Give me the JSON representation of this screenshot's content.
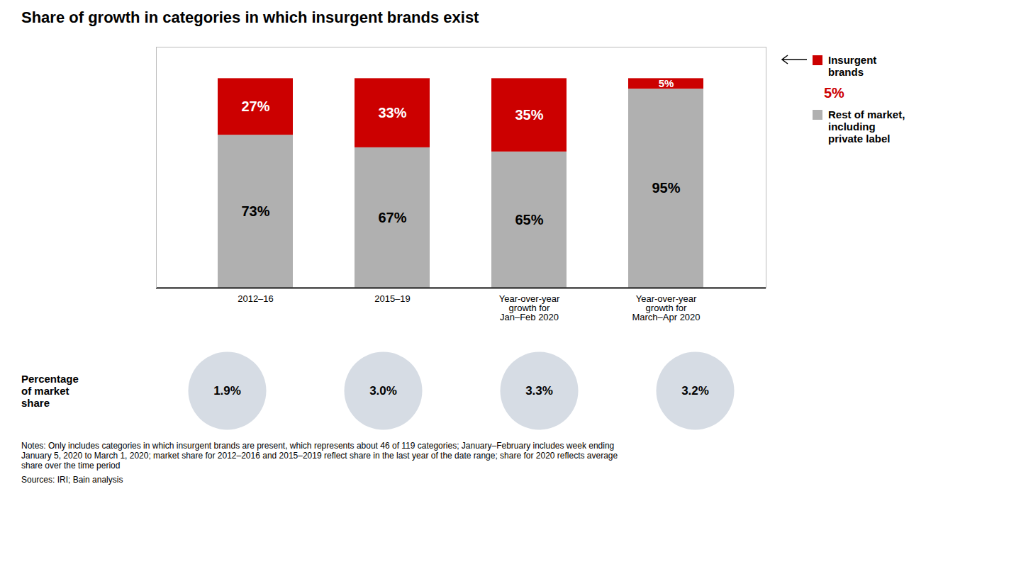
{
  "chart_data": {
    "type": "bar",
    "title": "Share of growth in categories in which insurgent brands exist",
    "stacked": true,
    "data_labels": true,
    "tick_labels": "x",
    "grid": false,
    "legend": "right",
    "categories": [
      "2012–16",
      "2015–19",
      "Year-over-year\ngrowth for\nJan–Feb 2020",
      "Year-over-year\ngrowth for\nMarch–Apr 2020"
    ],
    "ylim": [
      0,
      115
    ],
    "series": [
      {
        "name": "Rest of market,\nincluding\nprivate label",
        "color": "#b0b0b0",
        "values": [
          73,
          67,
          65,
          95
        ],
        "value_labels": [
          "73%",
          "67%",
          "65%",
          "95%"
        ]
      },
      {
        "name": "Insurgent\nbrands",
        "color": "#cc0000",
        "values": [
          27,
          33,
          35,
          5
        ],
        "value_labels": [
          "27%",
          "33%",
          "35%",
          "5%"
        ]
      }
    ],
    "annotations": [
      {
        "text": "5%"
      }
    ],
    "market_share": {
      "label": "Percentage\nof market\nshare",
      "color": "#d6dce4",
      "values": [
        1.9,
        3.0,
        3.3,
        3.2
      ],
      "value_labels": [
        "1.9%",
        "3.0%",
        "3.3%",
        "3.2%"
      ]
    },
    "notes": "Notes: Only includes categories in which insurgent brands are present, which represents about 46 of 119 categories; January–February includes week ending\nJanuary 5, 2020 to March 1, 2020; market share for 2012–2016 and 2015–2019 reflect share in the last year of the date range; share for 2020 reflects average\nshare over the time period",
    "sources": "Sources: IRI; Bain analysis"
  }
}
